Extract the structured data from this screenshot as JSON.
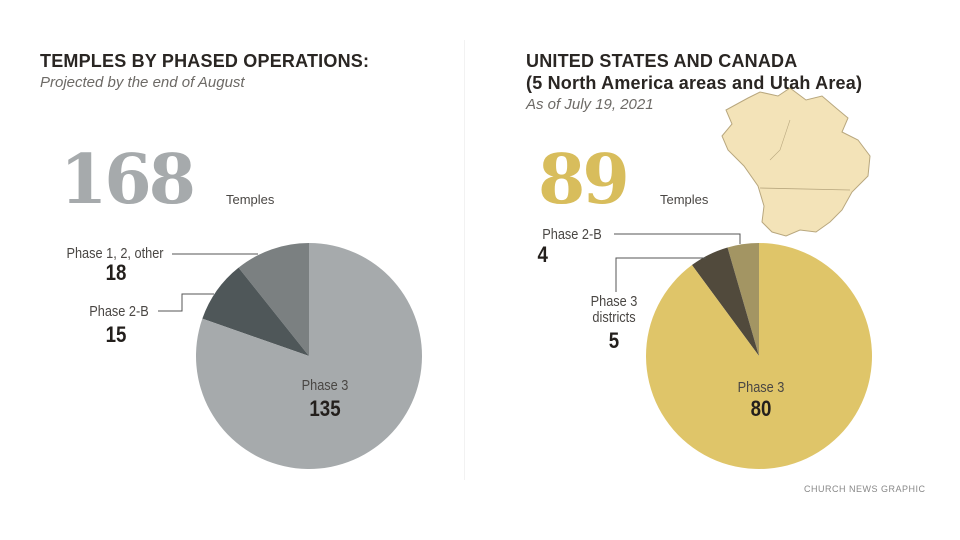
{
  "chart_data": [
    {
      "type": "pie",
      "title": "TEMPLES BY PHASED OPERATIONS:",
      "subtitle": "Projected by the end of August",
      "total": "168",
      "total_unit": "Temples",
      "slices": [
        {
          "label": "Phase 1, 2, other",
          "value": 18,
          "color": "#7b8081"
        },
        {
          "label": "Phase 2-B",
          "value": 15,
          "color": "#4f5759"
        },
        {
          "label": "Phase 3",
          "value": 135,
          "color": "#a6aaac"
        }
      ],
      "total_color": "#a6aaac"
    },
    {
      "type": "pie",
      "title": "UNITED STATES AND CANADA",
      "title2": "(5 North America areas and Utah Area)",
      "subtitle": "As of July 19, 2021",
      "total": "89",
      "total_unit": "Temples",
      "slices": [
        {
          "label": "Phase 2-B",
          "value": 4,
          "color": "#a39563"
        },
        {
          "label": "Phase 3 districts",
          "value": 5,
          "color": "#514a3c"
        },
        {
          "label": "Phase 3",
          "value": 80,
          "color": "#dfc569"
        }
      ],
      "total_color": "#d8bd5c"
    }
  ],
  "labels": {
    "l_other_1": "Phase 1, 2, other",
    "l_2b": "Phase 2-B",
    "l_p3": "Phase 3",
    "r_2b": "Phase 2-B",
    "r_dist1": "Phase 3",
    "r_dist2": "districts",
    "r_p3": "Phase 3"
  },
  "credit": "CHURCH NEWS GRAPHIC",
  "map_icon": "north-america-map-icon"
}
